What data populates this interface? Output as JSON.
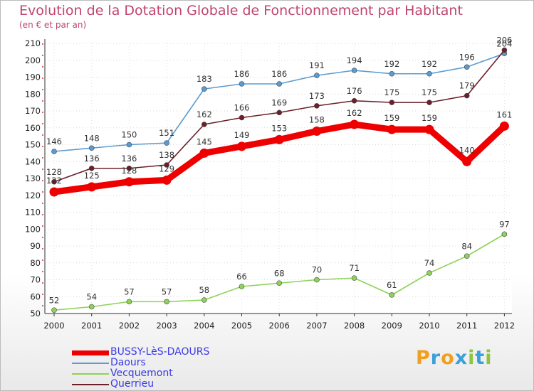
{
  "chart_data": {
    "type": "line",
    "title": "Evolution de la Dotation Globale de Fonctionnement par Habitant",
    "subtitle": "(en € et par an)",
    "x": [
      "2000",
      "2001",
      "2002",
      "2003",
      "2004",
      "2005",
      "2006",
      "2007",
      "2008",
      "2009",
      "2010",
      "2011",
      "2012"
    ],
    "ylim": [
      50,
      210
    ],
    "yticks": [
      50,
      60,
      70,
      80,
      90,
      100,
      110,
      120,
      130,
      140,
      150,
      160,
      170,
      180,
      190,
      200,
      210
    ],
    "series": [
      {
        "name": "Daours",
        "color": "#5a9bd0",
        "values": [
          146,
          148,
          150,
          151,
          183,
          186,
          186,
          191,
          194,
          192,
          192,
          196,
          204
        ],
        "labels": [
          "146",
          "148",
          "150",
          "151",
          "183",
          "186",
          "186",
          "191",
          "194",
          "192",
          "192",
          "196",
          "204"
        ]
      },
      {
        "name": "Querrieu",
        "color": "#6b1f2a",
        "values": [
          128,
          136,
          136,
          138,
          162,
          166,
          169,
          173,
          176,
          175,
          175,
          179,
          206
        ],
        "labels": [
          "128",
          "136",
          "136",
          "138",
          "162",
          "166",
          "169",
          "173",
          "176",
          "175",
          "175",
          "179",
          "206"
        ]
      },
      {
        "name": "Vecquemont",
        "color": "#8fd25a",
        "values": [
          52,
          54,
          57,
          57,
          58,
          66,
          68,
          70,
          71,
          61,
          74,
          84,
          97
        ],
        "labels": [
          "52",
          "54",
          "57",
          "57",
          "58",
          "66",
          "68",
          "70",
          "71",
          "61",
          "74",
          "84",
          "97"
        ]
      },
      {
        "name": "BUSSY-LèS-DAOURS",
        "color": "#ee0000",
        "values": [
          122,
          125,
          128,
          129,
          145,
          149,
          153,
          158,
          162,
          159,
          159,
          140,
          161
        ],
        "labels": [
          "122",
          "125",
          "128",
          "129",
          "145",
          "149",
          "153",
          "158",
          "162",
          "159",
          "159",
          "140",
          "161"
        ]
      }
    ],
    "legend": [
      {
        "name": "BUSSY-LèS-DAOURS",
        "color": "#ee0000",
        "width": 7
      },
      {
        "name": "Daours",
        "color": "#5a9bd0",
        "width": 1.5
      },
      {
        "name": "Vecquemont",
        "color": "#8fd25a",
        "width": 1.5
      },
      {
        "name": "Querrieu",
        "color": "#6b1f2a",
        "width": 1.5
      }
    ]
  },
  "logo": {
    "letters": [
      "P",
      "r",
      "o",
      "x",
      "i",
      "t",
      "i"
    ],
    "colors": [
      "#f0a020",
      "#3aa0d8",
      "#f0a020",
      "#3aa0d8",
      "#8cc63f",
      "#3aa0d8",
      "#8cc63f"
    ]
  }
}
